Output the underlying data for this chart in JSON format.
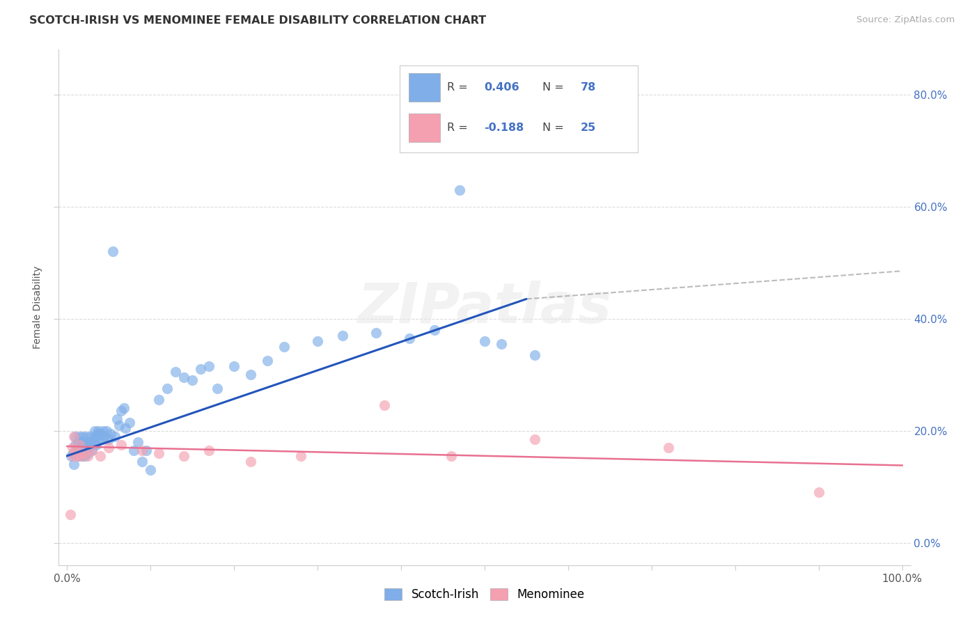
{
  "title": "SCOTCH-IRISH VS MENOMINEE FEMALE DISABILITY CORRELATION CHART",
  "source": "Source: ZipAtlas.com",
  "ylabel": "Female Disability",
  "xlim": [
    -0.01,
    1.01
  ],
  "ylim": [
    -0.04,
    0.88
  ],
  "background_color": "#ffffff",
  "grid_color": "#cccccc",
  "scotch_irish_color": "#7faee8",
  "menominee_color": "#f4a0b0",
  "scotch_irish_line_color": "#2255bb",
  "menominee_line_color": "#e87090",
  "trend_ext_color": "#aaaaaa",
  "R_scotch": 0.406,
  "N_scotch": 78,
  "R_menominee": -0.188,
  "N_menominee": 25,
  "si_trend_x0": 0.0,
  "si_trend_y0": 0.155,
  "si_trend_x1": 0.55,
  "si_trend_y1": 0.435,
  "si_trend_ext_x1": 1.0,
  "si_trend_ext_y1": 0.485,
  "me_trend_x0": 0.0,
  "me_trend_y0": 0.172,
  "me_trend_x1": 1.0,
  "me_trend_y1": 0.138,
  "x_ticks": [
    0.0,
    0.1,
    0.2,
    0.3,
    0.4,
    0.5,
    0.6,
    0.7,
    0.8,
    0.9,
    1.0
  ],
  "y_ticks": [
    0.0,
    0.2,
    0.4,
    0.6,
    0.8
  ],
  "legend_scotch_label": "Scotch-Irish",
  "legend_menominee_label": "Menominee",
  "scotch_irish_x": [
    0.005,
    0.007,
    0.008,
    0.01,
    0.01,
    0.01,
    0.012,
    0.013,
    0.013,
    0.014,
    0.015,
    0.015,
    0.016,
    0.017,
    0.018,
    0.018,
    0.019,
    0.02,
    0.02,
    0.021,
    0.022,
    0.022,
    0.023,
    0.024,
    0.025,
    0.026,
    0.027,
    0.028,
    0.03,
    0.031,
    0.032,
    0.033,
    0.034,
    0.035,
    0.036,
    0.037,
    0.038,
    0.04,
    0.042,
    0.043,
    0.045,
    0.047,
    0.05,
    0.052,
    0.055,
    0.057,
    0.06,
    0.062,
    0.065,
    0.068,
    0.07,
    0.075,
    0.08,
    0.085,
    0.09,
    0.095,
    0.1,
    0.11,
    0.12,
    0.13,
    0.14,
    0.15,
    0.16,
    0.17,
    0.18,
    0.2,
    0.22,
    0.24,
    0.26,
    0.3,
    0.33,
    0.37,
    0.41,
    0.44,
    0.47,
    0.5,
    0.52,
    0.56
  ],
  "scotch_irish_y": [
    0.155,
    0.16,
    0.14,
    0.16,
    0.175,
    0.19,
    0.17,
    0.18,
    0.165,
    0.155,
    0.19,
    0.17,
    0.165,
    0.18,
    0.155,
    0.17,
    0.19,
    0.165,
    0.18,
    0.155,
    0.17,
    0.165,
    0.19,
    0.175,
    0.16,
    0.18,
    0.175,
    0.19,
    0.165,
    0.175,
    0.185,
    0.2,
    0.19,
    0.175,
    0.195,
    0.2,
    0.185,
    0.195,
    0.185,
    0.2,
    0.19,
    0.2,
    0.185,
    0.195,
    0.52,
    0.19,
    0.22,
    0.21,
    0.235,
    0.24,
    0.205,
    0.215,
    0.165,
    0.18,
    0.145,
    0.165,
    0.13,
    0.255,
    0.275,
    0.305,
    0.295,
    0.29,
    0.31,
    0.315,
    0.275,
    0.315,
    0.3,
    0.325,
    0.35,
    0.36,
    0.37,
    0.375,
    0.365,
    0.38,
    0.63,
    0.36,
    0.355,
    0.335
  ],
  "menominee_x": [
    0.004,
    0.006,
    0.007,
    0.008,
    0.01,
    0.012,
    0.015,
    0.016,
    0.02,
    0.025,
    0.03,
    0.04,
    0.05,
    0.065,
    0.09,
    0.11,
    0.14,
    0.17,
    0.22,
    0.28,
    0.38,
    0.46,
    0.56,
    0.72,
    0.9
  ],
  "menominee_y": [
    0.05,
    0.17,
    0.155,
    0.19,
    0.165,
    0.155,
    0.175,
    0.155,
    0.16,
    0.155,
    0.165,
    0.155,
    0.17,
    0.175,
    0.165,
    0.16,
    0.155,
    0.165,
    0.145,
    0.155,
    0.245,
    0.155,
    0.185,
    0.17,
    0.09
  ]
}
